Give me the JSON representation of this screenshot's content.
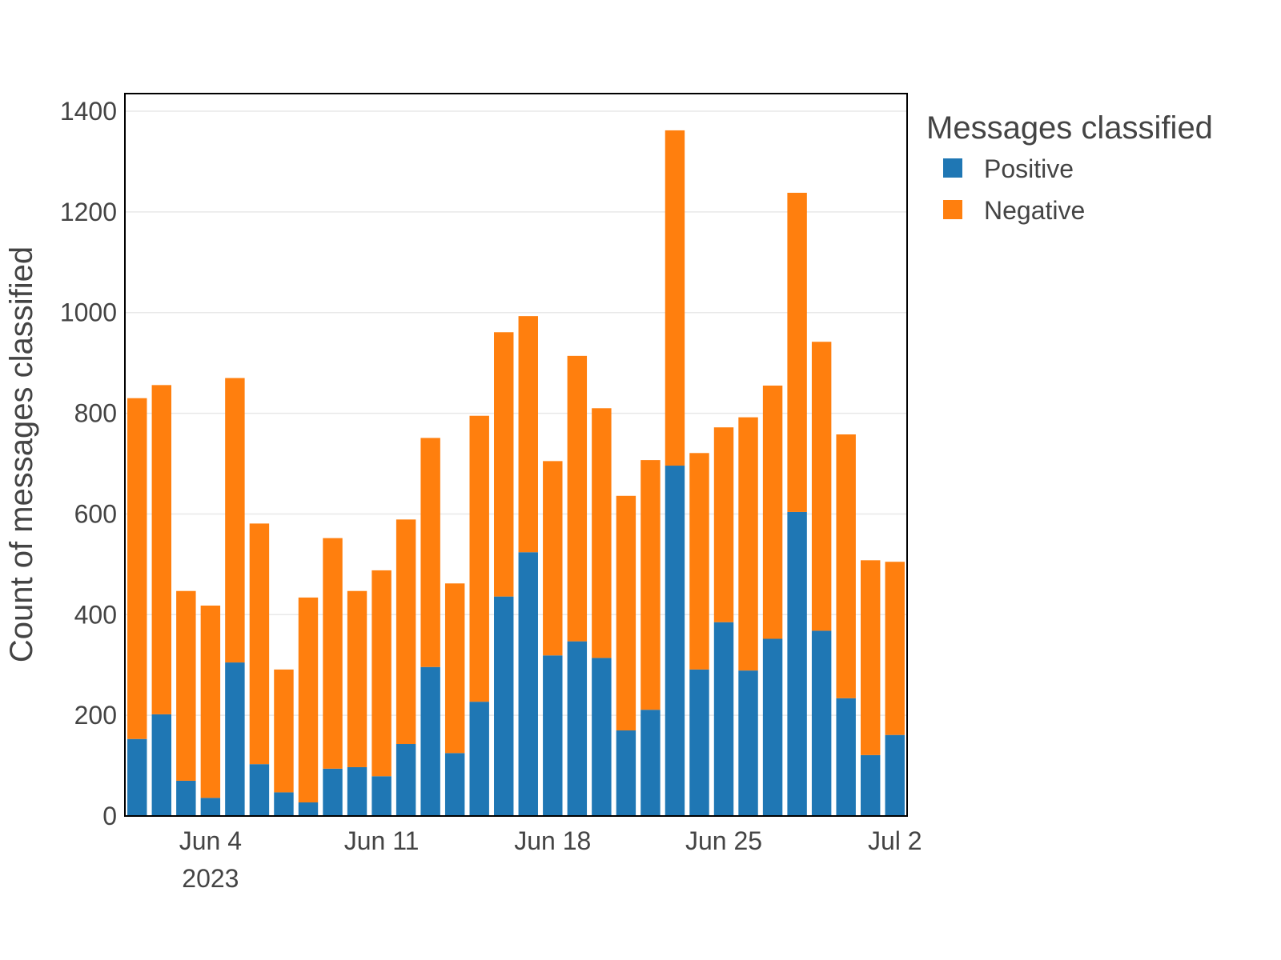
{
  "chart_data": {
    "type": "bar",
    "stacked": true,
    "ylabel": "Count of messages classified",
    "ylim": [
      0,
      1435
    ],
    "yticks": [
      0,
      200,
      400,
      600,
      800,
      1000,
      1200,
      1400
    ],
    "xlim": [
      "2023-05-31T12:00",
      "2023-07-02T12:00"
    ],
    "xticks": [
      {
        "date": "2023-06-04",
        "label": "Jun 4",
        "sublabel": "2023"
      },
      {
        "date": "2023-06-11",
        "label": "Jun 11",
        "sublabel": ""
      },
      {
        "date": "2023-06-18",
        "label": "Jun 18",
        "sublabel": ""
      },
      {
        "date": "2023-06-25",
        "label": "Jun 25",
        "sublabel": ""
      },
      {
        "date": "2023-07-02",
        "label": "Jul 2",
        "sublabel": ""
      }
    ],
    "grid": true,
    "legend": {
      "title": "Messages classified",
      "position": "right"
    },
    "x": [
      "2023-06-01",
      "2023-06-02",
      "2023-06-03",
      "2023-06-04",
      "2023-06-05",
      "2023-06-06",
      "2023-06-07",
      "2023-06-08",
      "2023-06-09",
      "2023-06-10",
      "2023-06-11",
      "2023-06-12",
      "2023-06-13",
      "2023-06-14",
      "2023-06-15",
      "2023-06-16",
      "2023-06-17",
      "2023-06-18",
      "2023-06-19",
      "2023-06-20",
      "2023-06-21",
      "2023-06-22",
      "2023-06-23",
      "2023-06-24",
      "2023-06-25",
      "2023-06-26",
      "2023-06-27",
      "2023-06-28",
      "2023-06-29",
      "2023-06-30",
      "2023-07-01",
      "2023-07-02"
    ],
    "series": [
      {
        "name": "Positive",
        "color": "#1f77b4",
        "values": [
          153,
          202,
          70,
          36,
          305,
          103,
          47,
          27,
          94,
          97,
          79,
          143,
          296,
          125,
          227,
          436,
          524,
          319,
          347,
          314,
          170,
          211,
          696,
          291,
          385,
          289,
          352,
          604,
          368,
          234,
          121,
          161
        ]
      },
      {
        "name": "Negative",
        "color": "#ff7f0e",
        "values": [
          677,
          654,
          377,
          382,
          565,
          478,
          244,
          407,
          458,
          350,
          409,
          446,
          455,
          337,
          568,
          525,
          469,
          386,
          567,
          496,
          466,
          496,
          666,
          430,
          387,
          503,
          503,
          634,
          574,
          524,
          387,
          344
        ]
      }
    ]
  }
}
